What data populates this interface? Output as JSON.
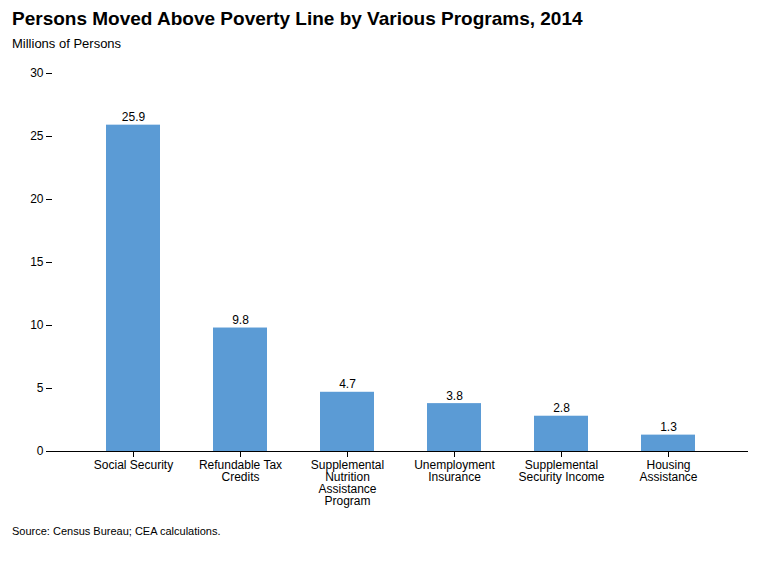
{
  "chart_data": {
    "type": "bar",
    "title": "Persons Moved Above Poverty Line by Various Programs, 2014",
    "subtitle": "Millions of Persons",
    "source": "Source: Census Bureau; CEA calculations.",
    "categories": [
      "Social Security",
      "Refundable Tax\nCredits",
      "Supplemental\nNutrition\nAssistance\nProgram",
      "Unemployment\nInsurance",
      "Supplemental\nSecurity Income",
      "Housing\nAssistance"
    ],
    "values": [
      25.9,
      9.8,
      4.7,
      3.8,
      2.8,
      1.3
    ],
    "color": "#5B9BD5",
    "ylim": [
      0,
      30
    ],
    "yticks": [
      0,
      5,
      10,
      15,
      20,
      25,
      30
    ],
    "grid": false,
    "data_labels": true
  }
}
